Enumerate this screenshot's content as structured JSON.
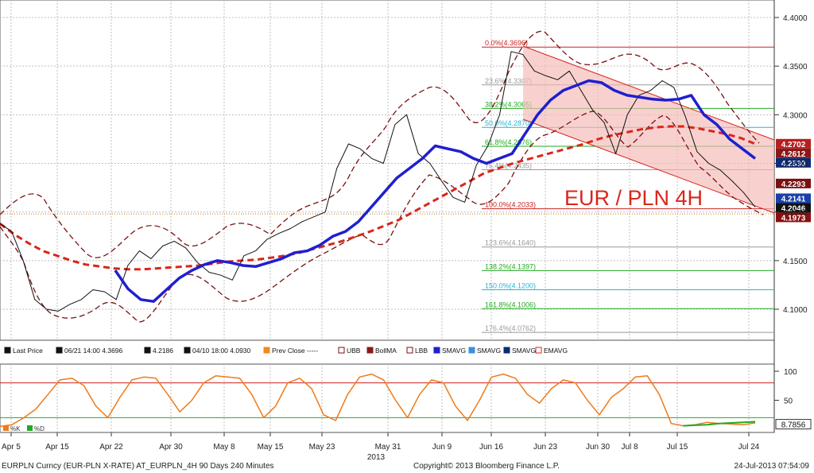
{
  "chart_data": [
    {
      "type": "line",
      "title": "EUR / PLN 4H",
      "ylim": [
        4.08,
        4.41
      ],
      "grid": true,
      "y_ticks": [
        "4.4000",
        "4.3500",
        "4.3000",
        "4.2500",
        "4.2000",
        "4.1500",
        "4.1000"
      ],
      "x_ticks": [
        "Apr 5",
        "Apr 15",
        "Apr 22",
        "Apr 30",
        "May 8",
        "May 15",
        "May 23",
        "May 31",
        "Jun 9",
        "Jun 16",
        "Jun 23",
        "Jun 30",
        "Jul 8",
        "Jul 15",
        "Jul 24"
      ],
      "year_label": "2013",
      "series": [
        {
          "name": "Last Price",
          "color": "#111111",
          "values": [
            4.188,
            4.18,
            4.15,
            4.11,
            4.1,
            4.098,
            4.105,
            4.11,
            4.12,
            4.118,
            4.11,
            4.145,
            4.16,
            4.152,
            4.165,
            4.17,
            4.163,
            4.148,
            4.138,
            4.135,
            4.13,
            4.155,
            4.16,
            4.172,
            4.178,
            4.183,
            4.19,
            4.195,
            4.2,
            4.245,
            4.27,
            4.265,
            4.255,
            4.25,
            4.29,
            4.3,
            4.26,
            4.25,
            4.232,
            4.215,
            4.21,
            4.248,
            4.268,
            4.3,
            4.365,
            4.362,
            4.345,
            4.34,
            4.336,
            4.345,
            4.325,
            4.305,
            4.292,
            4.26,
            4.3,
            4.32,
            4.325,
            4.335,
            4.328,
            4.298,
            4.262,
            4.25,
            4.243,
            4.232,
            4.22,
            4.205
          ]
        },
        {
          "name": "SMAVG",
          "color": "#1f1fd0",
          "values": [
            null,
            null,
            null,
            null,
            null,
            null,
            null,
            null,
            null,
            4.14,
            4.121,
            4.11,
            4.108,
            4.12,
            4.132,
            4.14,
            4.146,
            4.15,
            4.148,
            4.145,
            4.144,
            4.148,
            4.152,
            4.158,
            4.16,
            4.166,
            4.175,
            4.18,
            4.19,
            4.205,
            4.22,
            4.235,
            4.245,
            4.255,
            4.268,
            4.265,
            4.262,
            4.255,
            4.25,
            4.255,
            4.26,
            4.28,
            4.3,
            4.315,
            4.325,
            4.33,
            4.335,
            4.333,
            4.325,
            4.32,
            4.318,
            4.316,
            4.315,
            4.316,
            4.32,
            4.3,
            4.29,
            4.275,
            4.265,
            4.255
          ]
        },
        {
          "name": "EMAVG",
          "color": "#d8261a",
          "values": [
            4.188,
            4.177,
            4.168,
            4.16,
            4.155,
            4.15,
            4.146,
            4.144,
            4.142,
            4.141,
            4.141,
            4.142,
            4.143,
            4.144,
            4.145,
            4.147,
            4.149,
            4.15,
            4.151,
            4.153,
            4.155,
            4.158,
            4.162,
            4.166,
            4.17,
            4.175,
            4.18,
            4.186,
            4.192,
            4.2,
            4.208,
            4.216,
            4.224,
            4.232,
            4.24,
            4.245,
            4.25,
            4.254,
            4.258,
            4.262,
            4.266,
            4.27,
            4.275,
            4.279,
            4.282,
            4.285,
            4.287,
            4.288,
            4.288,
            4.286,
            4.283,
            4.28,
            4.276,
            4.27
          ]
        }
      ]
    },
    {
      "type": "line",
      "ylim": [
        0,
        100
      ],
      "y_ticks": [
        "100",
        "50"
      ],
      "x_ticks": [
        "Apr 5",
        "Apr 15",
        "Apr 22",
        "Apr 30",
        "May 8",
        "May 15",
        "May 23",
        "May 31",
        "Jun 9",
        "Jun 16",
        "Jun 23",
        "Jun 30",
        "Jul 8",
        "Jul 15",
        "Jul 24"
      ],
      "series": [
        {
          "name": "%K",
          "color": "#f07a1a",
          "values": [
            5,
            8,
            20,
            35,
            60,
            85,
            88,
            75,
            40,
            20,
            55,
            85,
            90,
            88,
            60,
            30,
            50,
            80,
            92,
            90,
            88,
            60,
            20,
            40,
            80,
            88,
            70,
            25,
            15,
            60,
            90,
            95,
            85,
            50,
            20,
            60,
            85,
            80,
            40,
            15,
            50,
            90,
            95,
            88,
            60,
            45,
            70,
            85,
            80,
            50,
            25,
            55,
            70,
            90,
            92,
            60,
            10,
            6,
            8,
            12,
            10,
            9,
            8,
            11
          ]
        },
        {
          "name": "%D",
          "color": "#22aa22",
          "values": [
            null,
            null,
            null,
            null,
            null,
            null,
            null,
            null,
            null,
            null,
            null,
            null,
            null,
            null,
            null,
            null,
            null,
            null,
            null,
            null,
            null,
            null,
            null,
            null,
            null,
            null,
            null,
            null,
            null,
            null,
            null,
            null,
            null,
            null,
            null,
            null,
            null,
            null,
            null,
            null,
            null,
            null,
            null,
            null,
            null,
            null,
            null,
            null,
            null,
            null,
            null,
            null,
            null,
            null,
            null,
            null,
            null,
            6,
            7,
            8,
            10,
            11,
            12,
            13
          ]
        }
      ]
    }
  ],
  "price_badges": [
    {
      "label": "4.2702",
      "bg": "#b81e1e",
      "price": 4.2702
    },
    {
      "label": "4.2612",
      "bg": "#8a1818",
      "price": 4.2612
    },
    {
      "label": "4.2530",
      "bg": "#0a2a7a",
      "price": 4.253
    },
    {
      "label": "4.2293",
      "bg": "#7a1010",
      "price": 4.2293
    },
    {
      "label": "4.2141",
      "bg": "#1b3fa8",
      "price": 4.2141
    },
    {
      "label": "4.2046",
      "bg": "#111111",
      "price": 4.2046
    },
    {
      "label": "4.1973",
      "bg": "#8a1010",
      "price": 4.1973
    }
  ],
  "stoch_badge": {
    "label": "8.7856",
    "value": 8.7856
  },
  "fib_levels": [
    {
      "label": "0.0%(4.3696)",
      "price": 4.3696,
      "color": "#cc2020"
    },
    {
      "label": "23.6%(4.3307)",
      "price": 4.3307,
      "color": "#999999"
    },
    {
      "label": "38.2%(4.3065)",
      "price": 4.3065,
      "color": "#22aa22"
    },
    {
      "label": "50.0%(4.2870)",
      "price": 4.287,
      "color": "#29b3d1"
    },
    {
      "label": "61.8%(4.2676)",
      "price": 4.2676,
      "color": "#22aa22"
    },
    {
      "label": "76.4%(4.2435)",
      "price": 4.2435,
      "color": "#999999"
    },
    {
      "label": "100.0%(4.2033)",
      "price": 4.2033,
      "color": "#cc2020"
    },
    {
      "label": "123.6%(4.1640)",
      "price": 4.164,
      "color": "#999999"
    },
    {
      "label": "138.2%(4.1397)",
      "price": 4.1397,
      "color": "#22aa22"
    },
    {
      "label": "150.0%(4.1200)",
      "price": 4.12,
      "color": "#29b3d1"
    },
    {
      "label": "161.8%(4.1006)",
      "price": 4.1006,
      "color": "#22aa22"
    },
    {
      "label": "176.4%(4.0762)",
      "price": 4.0762,
      "color": "#999999"
    }
  ],
  "legend": [
    {
      "label": "Last Price",
      "icon": "square",
      "color": "#111111"
    },
    {
      "label": "06/21 14:00 4.3696",
      "icon": "high-marker",
      "color": "#111111"
    },
    {
      "label": "4.2186",
      "icon": "plus-marker",
      "color": "#111111"
    },
    {
      "label": "04/10 18:00 4.0930",
      "icon": "low-marker",
      "color": "#111111"
    },
    {
      "label": "Prev Close -----",
      "icon": "square",
      "color": "#f08a1a"
    },
    {
      "label": "UBB",
      "icon": "band",
      "color": "#7a1010"
    },
    {
      "label": "BollMA",
      "icon": "square",
      "color": "#8a1818"
    },
    {
      "label": "LBB",
      "icon": "band",
      "color": "#7a1010"
    },
    {
      "label": "SMAVG",
      "icon": "square",
      "color": "#1f1fd0"
    },
    {
      "label": "SMAVG",
      "icon": "square",
      "color": "#3a8fe0"
    },
    {
      "label": "SMAVG",
      "icon": "square",
      "color": "#0a2a7a"
    },
    {
      "label": "EMAVG",
      "icon": "band",
      "color": "#d8261a"
    }
  ],
  "stoch_legend": [
    {
      "label": "%K",
      "color": "#f07a1a"
    },
    {
      "label": "%D",
      "color": "#22aa22"
    }
  ],
  "footer": {
    "left": "EURPLN Curncy (EUR-PLN X-RATE) AT_EURPLN_4H 90 Days 240 Minutes",
    "center": "Copyright© 2013 Bloomberg Finance L.P.",
    "right": "24-Jul-2013 07:54:09"
  }
}
